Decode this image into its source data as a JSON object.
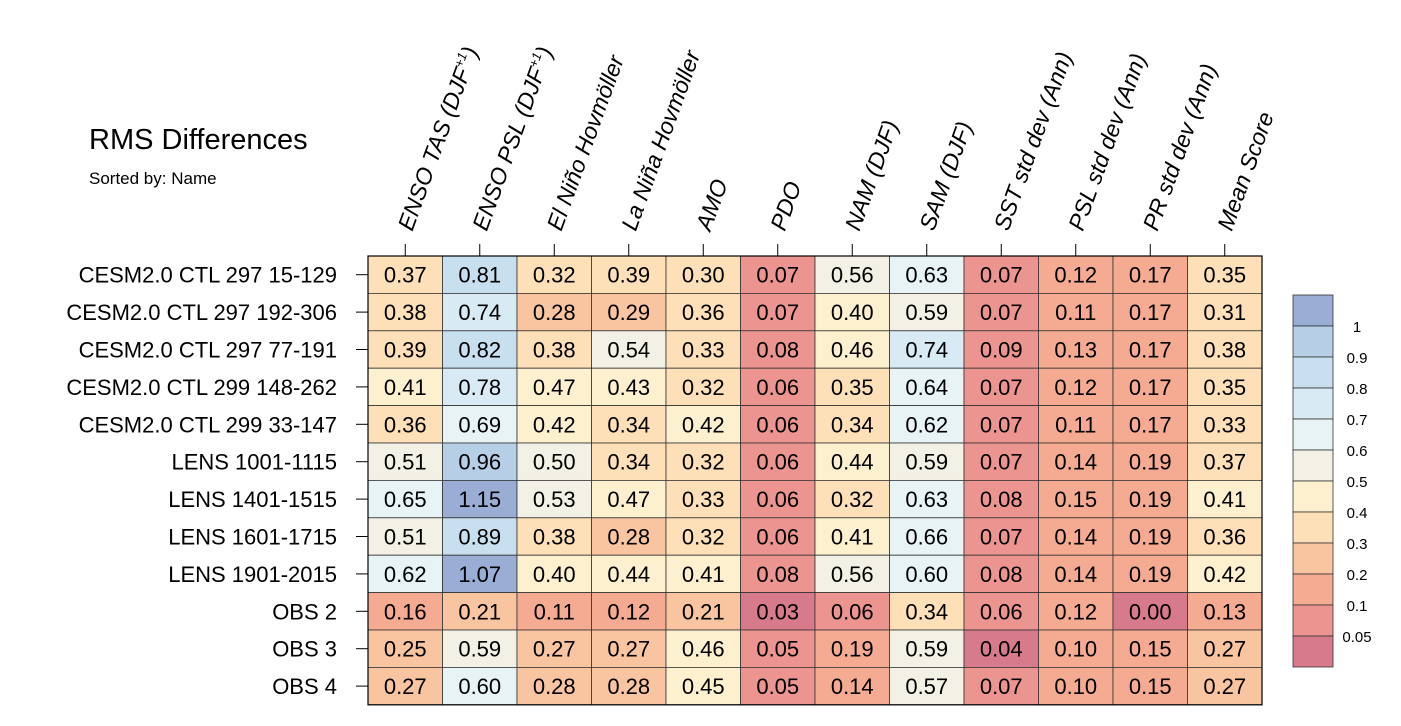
{
  "chart_data": {
    "type": "heatmap",
    "title": "RMS Differences",
    "subtitle": "Sorted by: Name",
    "columns": [
      {
        "pre": "ENSO TAS (DJF",
        "sup": "+1",
        "post": ")"
      },
      {
        "pre": "ENSO PSL (DJF",
        "sup": "+1",
        "post": ")"
      },
      {
        "pre": "El Niño Hovmöller"
      },
      {
        "pre": "La Niña Hovmöller"
      },
      {
        "pre": "AMO"
      },
      {
        "pre": "PDO"
      },
      {
        "pre": "NAM (DJF)"
      },
      {
        "pre": "SAM (DJF)"
      },
      {
        "pre": "SST std dev (Ann)"
      },
      {
        "pre": "PSL std dev (Ann)"
      },
      {
        "pre": "PR std dev (Ann)"
      },
      {
        "pre": "Mean Score"
      }
    ],
    "rows": [
      "CESM2.0 CTL 297 15-129",
      "CESM2.0 CTL 297 192-306",
      "CESM2.0 CTL 297 77-191",
      "CESM2.0 CTL 299 148-262",
      "CESM2.0 CTL 299 33-147",
      "LENS 1001-1115",
      "LENS 1401-1515",
      "LENS 1601-1715",
      "LENS 1901-2015",
      "OBS 2",
      "OBS 3",
      "OBS 4"
    ],
    "values": [
      [
        "0.37",
        "0.81",
        "0.32",
        "0.39",
        "0.30",
        "0.07",
        "0.56",
        "0.63",
        "0.07",
        "0.12",
        "0.17",
        "0.35"
      ],
      [
        "0.38",
        "0.74",
        "0.28",
        "0.29",
        "0.36",
        "0.07",
        "0.40",
        "0.59",
        "0.07",
        "0.11",
        "0.17",
        "0.31"
      ],
      [
        "0.39",
        "0.82",
        "0.38",
        "0.54",
        "0.33",
        "0.08",
        "0.46",
        "0.74",
        "0.09",
        "0.13",
        "0.17",
        "0.38"
      ],
      [
        "0.41",
        "0.78",
        "0.47",
        "0.43",
        "0.32",
        "0.06",
        "0.35",
        "0.64",
        "0.07",
        "0.12",
        "0.17",
        "0.35"
      ],
      [
        "0.36",
        "0.69",
        "0.42",
        "0.34",
        "0.42",
        "0.06",
        "0.34",
        "0.62",
        "0.07",
        "0.11",
        "0.17",
        "0.33"
      ],
      [
        "0.51",
        "0.96",
        "0.50",
        "0.34",
        "0.32",
        "0.06",
        "0.44",
        "0.59",
        "0.07",
        "0.14",
        "0.19",
        "0.37"
      ],
      [
        "0.65",
        "1.15",
        "0.53",
        "0.47",
        "0.33",
        "0.06",
        "0.32",
        "0.63",
        "0.08",
        "0.15",
        "0.19",
        "0.41"
      ],
      [
        "0.51",
        "0.89",
        "0.38",
        "0.28",
        "0.32",
        "0.06",
        "0.41",
        "0.66",
        "0.07",
        "0.14",
        "0.19",
        "0.36"
      ],
      [
        "0.62",
        "1.07",
        "0.40",
        "0.44",
        "0.41",
        "0.08",
        "0.56",
        "0.60",
        "0.08",
        "0.14",
        "0.19",
        "0.42"
      ],
      [
        "0.16",
        "0.21",
        "0.11",
        "0.12",
        "0.21",
        "0.03",
        "0.06",
        "0.34",
        "0.06",
        "0.12",
        "0.00",
        "0.13"
      ],
      [
        "0.25",
        "0.59",
        "0.27",
        "0.27",
        "0.46",
        "0.05",
        "0.19",
        "0.59",
        "0.04",
        "0.10",
        "0.15",
        "0.27"
      ],
      [
        "0.27",
        "0.60",
        "0.28",
        "0.28",
        "0.45",
        "0.05",
        "0.14",
        "0.57",
        "0.07",
        "0.10",
        "0.15",
        "0.27"
      ]
    ],
    "colorbar": {
      "levels": [
        "1",
        "0.9",
        "0.8",
        "0.7",
        "0.6",
        "0.5",
        "0.4",
        "0.3",
        "0.2",
        "0.1",
        "0.05"
      ],
      "colors": [
        "#9aaed5",
        "#b6cfe6",
        "#c8dfef",
        "#d8eaf4",
        "#e8f3f6",
        "#f3f1e6",
        "#fdf0cf",
        "#fde0b7",
        "#f9c5a0",
        "#f4ab92",
        "#ec9490",
        "#d77a8c"
      ]
    }
  }
}
